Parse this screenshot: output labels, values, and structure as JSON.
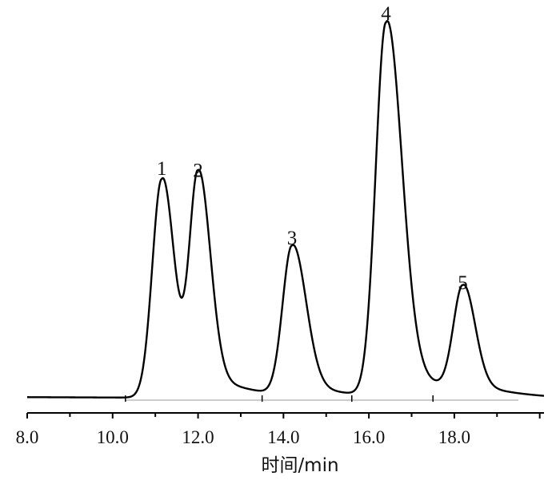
{
  "chart_data": {
    "type": "line",
    "title": "",
    "xlabel": "时间/min",
    "ylabel": "",
    "xlim": [
      8.0,
      20.1
    ],
    "ylim": [
      0,
      100
    ],
    "grid": false,
    "x_ticks": [
      8.0,
      10.0,
      12.0,
      14.0,
      16.0,
      18.0
    ],
    "x_tick_labels": [
      "8.0",
      "10.0",
      "12.0",
      "14.0",
      "16.0",
      "18.0"
    ],
    "peaks": [
      {
        "label": "1",
        "x": 11.15,
        "y": 58.5
      },
      {
        "label": "2",
        "x": 12.0,
        "y": 58.0
      },
      {
        "label": "3",
        "x": 14.2,
        "y": 40.0
      },
      {
        "label": "4",
        "x": 16.4,
        "y": 100.0
      },
      {
        "label": "5",
        "x": 18.2,
        "y": 28.0
      }
    ],
    "baseline": 0
  }
}
